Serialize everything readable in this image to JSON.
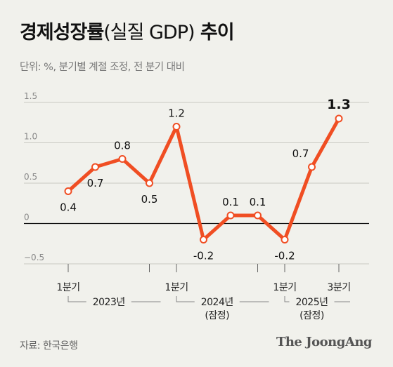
{
  "title": {
    "main": "경제성장률",
    "paren": "(실질 GDP)",
    "tail": " 추이"
  },
  "subtitle": "단위: %, 분기별 계절 조정, 전 분기 대비",
  "source": "자료: 한국은행",
  "brand": "The JoongAng",
  "colors": {
    "line": "#f04e23",
    "background": "#f1f1ec",
    "grid": "#c9c9c2",
    "zero": "#111111"
  },
  "chart_data": {
    "type": "line",
    "x": [
      "2023 Q1",
      "2023 Q2",
      "2023 Q3",
      "2023 Q4",
      "2024 Q1",
      "2024 Q2",
      "2024 Q3",
      "2024 Q4",
      "2025 Q1",
      "2025 Q2",
      "2025 Q3"
    ],
    "series": [
      {
        "values": [
          0.4,
          0.7,
          0.8,
          0.5,
          1.2,
          -0.2,
          0.1,
          0.1,
          -0.2,
          0.7,
          1.3
        ]
      }
    ],
    "data_labels": [
      "0.4",
      "0.7",
      "0.8",
      "0.5",
      "1.2",
      "-0.2",
      "0.1",
      "0.1",
      "-0.2",
      "0.7",
      "1.3"
    ],
    "highlight_last": true,
    "ylim": [
      -0.5,
      1.5
    ],
    "yticks": [
      {
        "value": 1.5,
        "label": "1.5"
      },
      {
        "value": 1.0,
        "label": "1.0"
      },
      {
        "value": 0.5,
        "label": "0.5"
      },
      {
        "value": 0,
        "label": "0"
      },
      {
        "value": -0.5,
        "label": "−0.5"
      }
    ],
    "grid": true,
    "quarter_labels": [
      {
        "index": 0,
        "label": "1분기"
      },
      {
        "index": 4,
        "label": "1분기"
      },
      {
        "index": 8,
        "label": "1분기"
      },
      {
        "index": 10,
        "label": "3분기"
      }
    ],
    "year_groups": [
      {
        "start": 0,
        "end": 3,
        "label": "2023년",
        "sub": ""
      },
      {
        "start": 4,
        "end": 7,
        "label": "2024년",
        "sub": "(잠정)"
      },
      {
        "start": 8,
        "end": 10,
        "label": "2025년",
        "sub": "(잠정)"
      }
    ]
  }
}
